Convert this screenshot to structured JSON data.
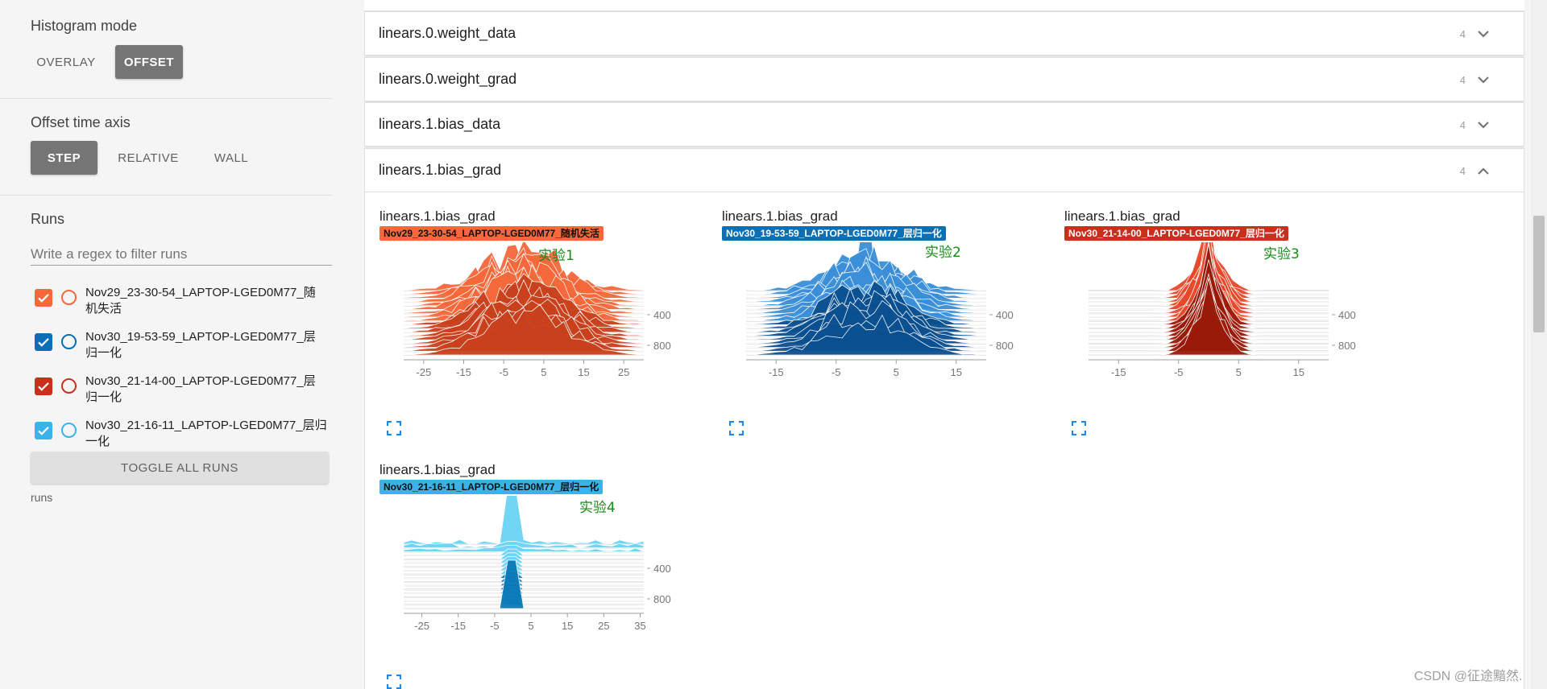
{
  "sidebar": {
    "histogram_mode": {
      "title": "Histogram mode",
      "options": [
        "OVERLAY",
        "OFFSET"
      ],
      "selected": "OFFSET"
    },
    "offset_time_axis": {
      "title": "Offset time axis",
      "options": [
        "STEP",
        "RELATIVE",
        "WALL"
      ],
      "selected": "STEP"
    },
    "runs": {
      "title": "Runs",
      "filter_placeholder": "Write a regex to filter runs",
      "items": [
        {
          "label": "Nov29_23-30-54_LAPTOP-LGED0M77_随机失活",
          "color": "#f4683a",
          "checked": true
        },
        {
          "label": "Nov30_19-53-59_LAPTOP-LGED0M77_层归一化",
          "color": "#0a6fb5",
          "checked": true
        },
        {
          "label": "Nov30_21-14-00_LAPTOP-LGED0M77_层归一化",
          "color": "#c9301c",
          "checked": true
        },
        {
          "label": "Nov30_21-16-11_LAPTOP-LGED0M77_层归一化",
          "color": "#3ab3e8",
          "checked": true
        }
      ],
      "toggle_label": "TOGGLE ALL RUNS",
      "footer": "runs"
    }
  },
  "main": {
    "groups": [
      {
        "name": "linears.0.weight_data",
        "count": "4",
        "expanded": false
      },
      {
        "name": "linears.0.weight_grad",
        "count": "4",
        "expanded": false
      },
      {
        "name": "linears.1.bias_data",
        "count": "4",
        "expanded": false
      },
      {
        "name": "linears.1.bias_grad",
        "count": "4",
        "expanded": true
      }
    ],
    "cards": [
      {
        "tag": "linears.1.bias_grad",
        "run": "Nov29_23-30-54_LAPTOP-LGED0M77_随机失活",
        "color": "#f4683a",
        "annotation": "实验1"
      },
      {
        "tag": "linears.1.bias_grad",
        "run": "Nov30_19-53-59_LAPTOP-LGED0M77_层归一化",
        "color": "#0a6fb5",
        "annotation": "实验2"
      },
      {
        "tag": "linears.1.bias_grad",
        "run": "Nov30_21-14-00_LAPTOP-LGED0M77_层归一化",
        "color": "#c9301c",
        "annotation": "实验3"
      },
      {
        "tag": "linears.1.bias_grad",
        "run": "Nov30_21-16-11_LAPTOP-LGED0M77_层归一化",
        "color": "#3ab3e8",
        "annotation": "实验4"
      }
    ]
  },
  "chart_data": [
    {
      "type": "area",
      "title": "linears.1.bias_grad",
      "series_name": "Nov29_23-30-54_LAPTOP-LGED0M77_随机失活",
      "xlim": [
        -30,
        30
      ],
      "x_ticks": [
        -25,
        -15,
        -5,
        5,
        15,
        25
      ],
      "y_ticks": [
        400,
        800
      ],
      "shape": "wide",
      "color": "#f4683a",
      "color_dark": "#c9401c",
      "annotation": "实验1"
    },
    {
      "type": "area",
      "title": "linears.1.bias_grad",
      "series_name": "Nov30_19-53-59_LAPTOP-LGED0M77_层归一化",
      "xlim": [
        -20,
        20
      ],
      "x_ticks": [
        -15,
        -5,
        5,
        15
      ],
      "y_ticks": [
        400,
        800
      ],
      "shape": "peaked",
      "color": "#3a8fd8",
      "color_dark": "#0a4f8f",
      "annotation": "实验2"
    },
    {
      "type": "area",
      "title": "linears.1.bias_grad",
      "series_name": "Nov30_21-14-00_LAPTOP-LGED0M77_层归一化",
      "xlim": [
        -20,
        20
      ],
      "x_ticks": [
        -15,
        -5,
        5,
        15
      ],
      "y_ticks": [
        400,
        800
      ],
      "shape": "spike",
      "color": "#e8482a",
      "color_dark": "#9a1a0a",
      "annotation": "实验3"
    },
    {
      "type": "area",
      "title": "linears.1.bias_grad",
      "series_name": "Nov30_21-16-11_LAPTOP-LGED0M77_层归一化",
      "xlim": [
        -30,
        36
      ],
      "x_ticks": [
        -25,
        -15,
        -5,
        5,
        15,
        25,
        35
      ],
      "y_ticks": [
        400,
        800
      ],
      "shape": "needle",
      "color": "#6ad4f4",
      "color_dark": "#0a7ab8",
      "annotation": "实验4"
    }
  ],
  "watermark": "CSDN @征途黯然."
}
